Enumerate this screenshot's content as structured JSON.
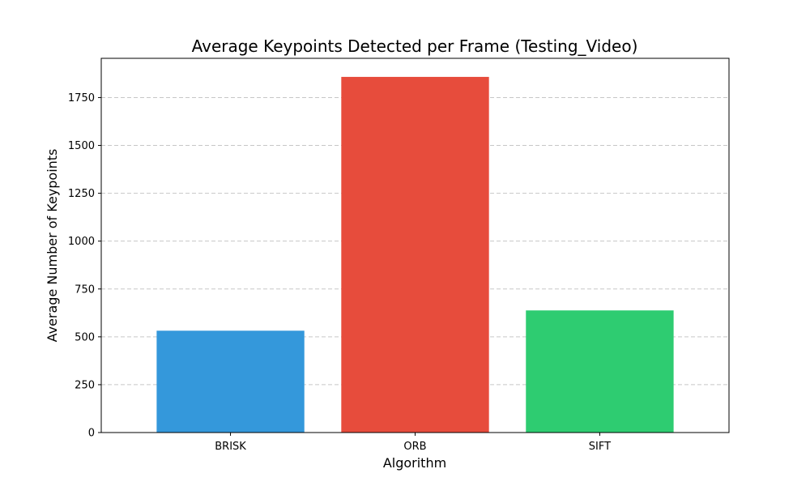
{
  "chart_data": {
    "type": "bar",
    "title": "Average Keypoints Detected per Frame (Testing_Video)",
    "xlabel": "Algorithm",
    "ylabel": "Average Number of Keypoints",
    "categories": [
      "BRISK",
      "ORB",
      "SIFT"
    ],
    "values": [
      532,
      1858,
      638
    ],
    "colors": [
      "#3498db",
      "#e74c3c",
      "#2ecc71"
    ],
    "ylim": [
      0,
      1955
    ],
    "yticks": [
      0,
      250,
      500,
      750,
      1000,
      1250,
      1500,
      1750
    ],
    "grid": "y-dashed",
    "legend": "none"
  }
}
